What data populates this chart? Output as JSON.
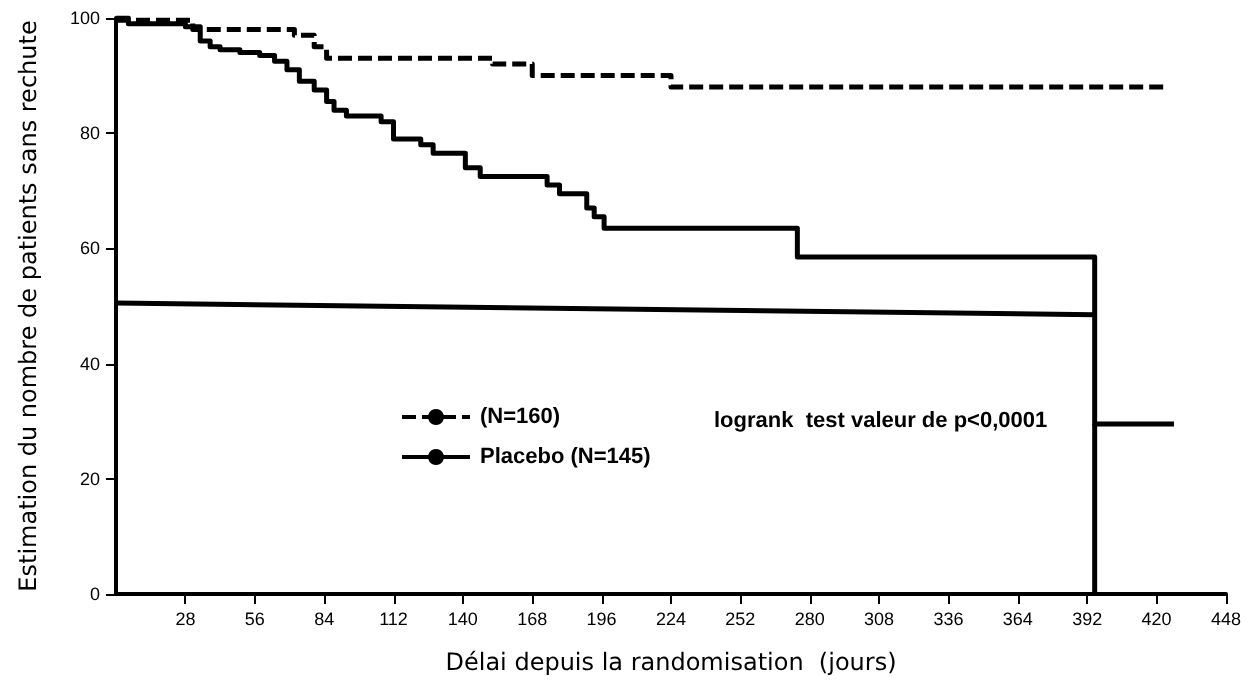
{
  "chart_data": {
    "type": "step",
    "xlabel": "Délai depuis la randomisation  (jours)",
    "ylabel": "Estimation du nombre de patients sans rechute",
    "annotations": [
      "logrank  test valeur de p<0,0001"
    ],
    "xlim": [
      0,
      448
    ],
    "xticks": [
      28,
      56,
      84,
      112,
      140,
      168,
      196,
      224,
      252,
      280,
      308,
      336,
      364,
      392,
      420,
      448
    ],
    "ylim": [
      0,
      100
    ],
    "yticks": [
      0,
      20,
      40,
      60,
      80,
      100
    ],
    "grid": false,
    "legend": "left",
    "marker": "none",
    "series": [
      {
        "name": "(N=160)",
        "color": "#000000",
        "line_style": "dashed",
        "x": [
          0,
          31,
          72,
          80,
          85,
          152,
          168,
          224,
          424
        ],
        "values": [
          99.6,
          98,
          97,
          95,
          93,
          92,
          90,
          88,
          88
        ]
      },
      {
        "name": "Placebo (N=145)",
        "color": "#000000",
        "line_style": "solid",
        "x": [
          0,
          5,
          28,
          34,
          38,
          42,
          50,
          58,
          64,
          69,
          74,
          80,
          85,
          88,
          93,
          107,
          112,
          123,
          128,
          141,
          147,
          174,
          179,
          190,
          193,
          197,
          275,
          395,
          427
        ],
        "values": [
          100,
          99,
          98.5,
          96,
          95,
          94.5,
          94,
          93.5,
          92.5,
          91,
          89,
          87.5,
          85.5,
          84,
          83,
          82,
          79,
          78,
          76.5,
          74,
          72.5,
          71,
          69.5,
          67,
          65.5,
          63.5,
          58.5,
          29.5,
          29.5
        ]
      },
      {
        "type": "line",
        "color": "#000000",
        "line_style": "solid",
        "x": [
          395,
          395
        ],
        "values": [
          0,
          29.5
        ]
      },
      {
        "type": "line",
        "color": "#000000",
        "line_style": "solid",
        "x": [
          0,
          395
        ],
        "values": [
          50.5,
          48.5
        ]
      }
    ]
  }
}
